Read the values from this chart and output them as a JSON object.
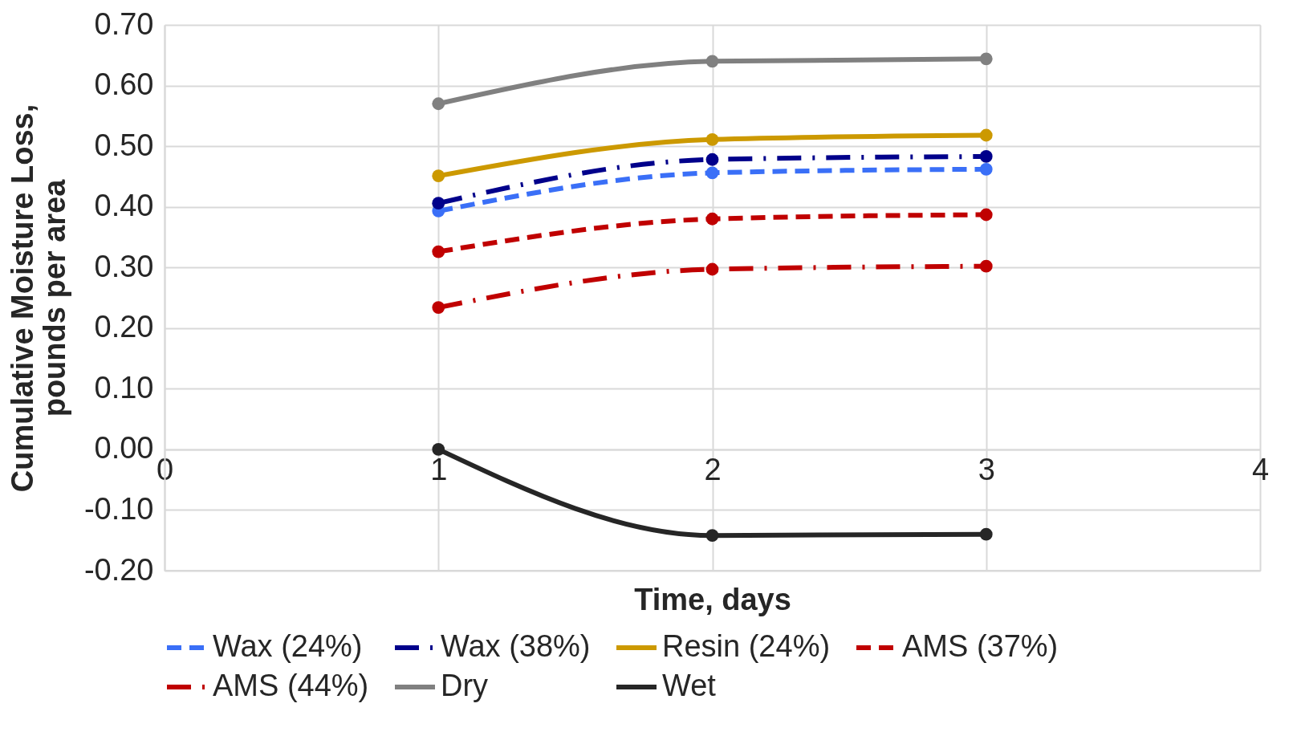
{
  "chart_data": {
    "type": "line",
    "xlabel": "Time, days",
    "ylabel": "Cumulative Moisture Loss, pounds per area",
    "xlim": [
      0,
      4
    ],
    "xticks": [
      0,
      1,
      2,
      3,
      4
    ],
    "ylim": [
      -0.2,
      0.7
    ],
    "yticks": [
      {
        "value": -0.2,
        "label": "-0.20"
      },
      {
        "value": -0.1,
        "label": "-0.10"
      },
      {
        "value": 0,
        "label": "0.00"
      },
      {
        "value": 0.1,
        "label": "0.10"
      },
      {
        "value": 0.2,
        "label": "0.20"
      },
      {
        "value": 0.3,
        "label": "0.30"
      },
      {
        "value": 0.4,
        "label": "0.40"
      },
      {
        "value": 0.5,
        "label": "0.50"
      },
      {
        "value": 0.6,
        "label": "0.60"
      },
      {
        "value": 0.7,
        "label": "0.70"
      }
    ],
    "grid": true,
    "legend": "bottom",
    "marker": "circle",
    "series": [
      {
        "name": "Wax (24%)",
        "color": "#3a6ff7",
        "line_style": "dashed",
        "x": [
          1,
          2,
          3
        ],
        "values": [
          0.393,
          0.456,
          0.462
        ]
      },
      {
        "name": "Wax (38%)",
        "color": "#00008b",
        "line_style": "dashdot",
        "x": [
          1,
          2,
          3
        ],
        "values": [
          0.406,
          0.478,
          0.483
        ]
      },
      {
        "name": "Resin (24%)",
        "color": "#cc9900",
        "line_style": "solid",
        "x": [
          1,
          2,
          3
        ],
        "values": [
          0.451,
          0.511,
          0.518
        ]
      },
      {
        "name": "AMS (37%)",
        "color": "#c00000",
        "line_style": "dashed",
        "x": [
          1,
          2,
          3
        ],
        "values": [
          0.326,
          0.38,
          0.387
        ]
      },
      {
        "name": "AMS (44%)",
        "color": "#c00000",
        "line_style": "dashdot",
        "x": [
          1,
          2,
          3
        ],
        "values": [
          0.234,
          0.297,
          0.302
        ]
      },
      {
        "name": "Dry",
        "color": "#808080",
        "line_style": "solid",
        "x": [
          1,
          2,
          3
        ],
        "values": [
          0.57,
          0.64,
          0.644
        ]
      },
      {
        "name": "Wet",
        "color": "#262626",
        "line_style": "solid",
        "x": [
          1,
          2,
          3
        ],
        "values": [
          0.0,
          -0.142,
          -0.14
        ]
      }
    ]
  }
}
